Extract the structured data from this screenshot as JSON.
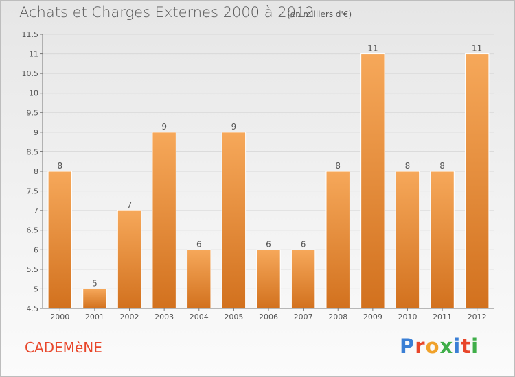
{
  "header": {
    "title": "Achats et Charges Externes 2000 à 2012",
    "subtitle": "(en milliers d'€)"
  },
  "footer": {
    "commune": "CADEMèNE",
    "logo_text": "Proxiti",
    "logo_colors": [
      "#3a7fd5",
      "#e8462a",
      "#f0a12a",
      "#3fae49",
      "#3a7fd5",
      "#e8462a",
      "#3fae49"
    ]
  },
  "colors": {
    "bar_top": "#f6a85a",
    "bar_bottom": "#d2711e",
    "axis": "#777777",
    "grid": "#d8d8d8",
    "text": "#555555"
  },
  "chart_data": {
    "type": "bar",
    "title": "Achats et Charges Externes 2000 à 2012",
    "subtitle": "(en milliers d'€)",
    "categories": [
      "2000",
      "2001",
      "2002",
      "2003",
      "2004",
      "2005",
      "2006",
      "2007",
      "2008",
      "2009",
      "2010",
      "2011",
      "2012"
    ],
    "values": [
      8,
      5,
      7,
      9,
      6,
      9,
      6,
      6,
      8,
      11,
      8,
      8,
      11
    ],
    "data_labels": [
      "8",
      "5",
      "7",
      "9",
      "6",
      "9",
      "6",
      "6",
      "8",
      "11",
      "8",
      "8",
      "11"
    ],
    "ylim": [
      4.5,
      11.5
    ],
    "yticks": [
      "4.5",
      "5",
      "5.5",
      "6",
      "6.5",
      "7",
      "7.5",
      "8",
      "8.5",
      "9",
      "9.5",
      "10",
      "10.5",
      "11",
      "11.5"
    ],
    "xlabel": "",
    "ylabel": "",
    "grid": true,
    "legend": "none"
  }
}
